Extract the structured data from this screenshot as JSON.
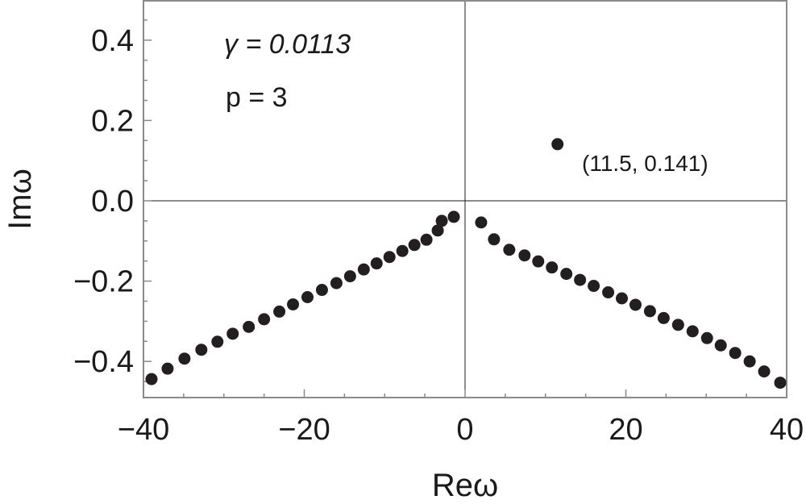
{
  "chart_data": {
    "type": "scatter",
    "xlabel": "Reω",
    "ylabel": "Imω",
    "xlim": [
      -40,
      40
    ],
    "ylim": [
      -0.49,
      0.5
    ],
    "xticks": [
      -40,
      -20,
      0,
      20,
      40
    ],
    "xtick_labels": [
      "−40",
      "−20",
      "0",
      "20",
      "40"
    ],
    "yticks": [
      -0.4,
      -0.2,
      0.0,
      0.2,
      0.4
    ],
    "ytick_labels": [
      "−0.4",
      "−0.2",
      "0.0",
      "0.2",
      "0.4"
    ],
    "grid": false,
    "color": "#231f20",
    "annotations": {
      "gamma": "γ = 0.0113",
      "p": "p = 3"
    },
    "highlight_label": "(11.5, 0.141)",
    "points": [
      {
        "x": -39.0,
        "y": -0.444
      },
      {
        "x": -37.0,
        "y": -0.418
      },
      {
        "x": -34.9,
        "y": -0.393
      },
      {
        "x": -32.8,
        "y": -0.371
      },
      {
        "x": -30.8,
        "y": -0.351
      },
      {
        "x": -28.9,
        "y": -0.331
      },
      {
        "x": -26.9,
        "y": -0.314
      },
      {
        "x": -25.0,
        "y": -0.295
      },
      {
        "x": -23.1,
        "y": -0.276
      },
      {
        "x": -21.4,
        "y": -0.258
      },
      {
        "x": -19.6,
        "y": -0.24
      },
      {
        "x": -17.8,
        "y": -0.222
      },
      {
        "x": -16.0,
        "y": -0.205
      },
      {
        "x": -14.3,
        "y": -0.188
      },
      {
        "x": -12.6,
        "y": -0.171
      },
      {
        "x": -11.0,
        "y": -0.156
      },
      {
        "x": -9.4,
        "y": -0.14
      },
      {
        "x": -7.8,
        "y": -0.125
      },
      {
        "x": -6.3,
        "y": -0.11
      },
      {
        "x": -4.8,
        "y": -0.097
      },
      {
        "x": -3.4,
        "y": -0.074
      },
      {
        "x": -2.9,
        "y": -0.05
      },
      {
        "x": -1.4,
        "y": -0.04
      },
      {
        "x": 2.0,
        "y": -0.054
      },
      {
        "x": 3.6,
        "y": -0.096
      },
      {
        "x": 5.5,
        "y": -0.122
      },
      {
        "x": 7.4,
        "y": -0.136
      },
      {
        "x": 9.1,
        "y": -0.151
      },
      {
        "x": 10.8,
        "y": -0.166
      },
      {
        "x": 12.6,
        "y": -0.182
      },
      {
        "x": 14.3,
        "y": -0.197
      },
      {
        "x": 16.0,
        "y": -0.212
      },
      {
        "x": 17.8,
        "y": -0.228
      },
      {
        "x": 19.5,
        "y": -0.243
      },
      {
        "x": 21.2,
        "y": -0.259
      },
      {
        "x": 23.0,
        "y": -0.275
      },
      {
        "x": 24.7,
        "y": -0.292
      },
      {
        "x": 26.5,
        "y": -0.309
      },
      {
        "x": 28.3,
        "y": -0.325
      },
      {
        "x": 30.1,
        "y": -0.342
      },
      {
        "x": 31.8,
        "y": -0.36
      },
      {
        "x": 33.6,
        "y": -0.379
      },
      {
        "x": 35.4,
        "y": -0.4
      },
      {
        "x": 37.2,
        "y": -0.425
      },
      {
        "x": 39.2,
        "y": -0.453
      },
      {
        "x": 11.5,
        "y": 0.141
      }
    ]
  }
}
